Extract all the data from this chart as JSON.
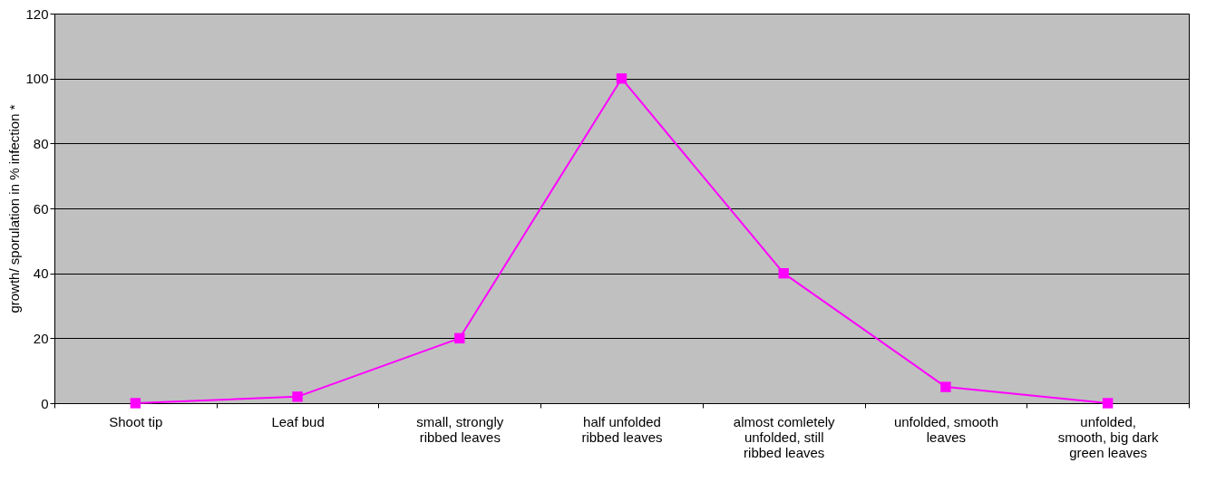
{
  "chart_data": {
    "type": "line",
    "ylabel": "growth/ sporulation in % infection *",
    "categories": [
      "Shoot  tip",
      "Leaf  bud",
      "small, strongly ribbed leaves",
      "half unfolded ribbed leaves",
      "almost comletely unfolded, still ribbed leaves",
      "unfolded, smooth leaves",
      "unfolded, smooth, big dark green leaves"
    ],
    "series": [
      {
        "color": "#ff00ff",
        "values": [
          0,
          2,
          20,
          100,
          40,
          5,
          0
        ]
      }
    ],
    "ylim": [
      0,
      120
    ],
    "yticks": [
      0,
      20,
      40,
      60,
      80,
      100,
      120
    ],
    "grid": "y",
    "marker": "square",
    "line_style": "solid"
  }
}
